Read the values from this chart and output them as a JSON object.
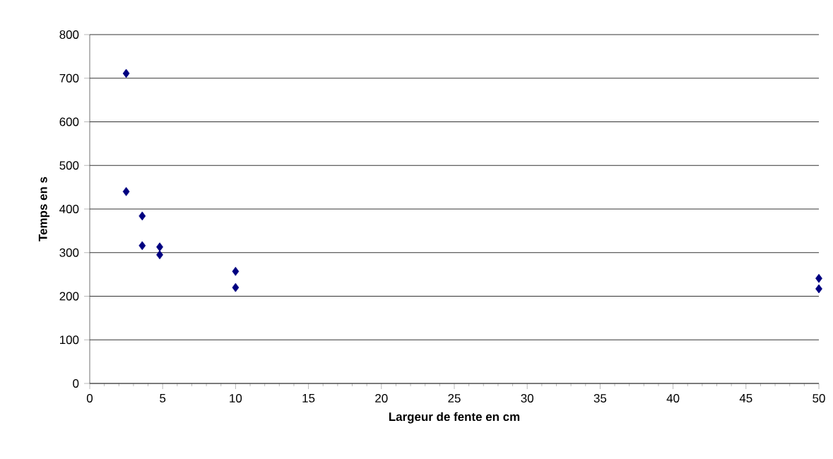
{
  "chart_data": {
    "type": "scatter",
    "xlabel": "Largeur de fente en cm",
    "ylabel": "Temps en s",
    "x": [
      2.5,
      2.5,
      3.6,
      3.6,
      4.8,
      4.8,
      10,
      10,
      50,
      50
    ],
    "values": [
      711,
      440,
      384,
      316,
      313,
      295,
      257,
      220,
      241,
      217
    ],
    "color": "#000080",
    "marker": "diamond",
    "grid": "y",
    "legend": false,
    "xlim": [
      0,
      50
    ],
    "xticks": [
      0,
      5,
      10,
      15,
      20,
      25,
      30,
      35,
      40,
      45,
      50
    ],
    "ylim": [
      0,
      800
    ],
    "yticks": [
      0,
      100,
      200,
      300,
      400,
      500,
      600,
      700,
      800
    ]
  }
}
